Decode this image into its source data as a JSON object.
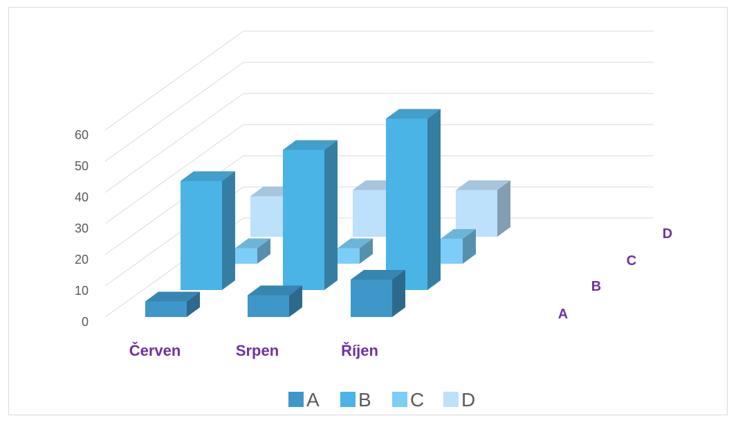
{
  "chart_data": {
    "type": "bar",
    "subtype": "3d-column",
    "categories": [
      "Červen",
      "Srpen",
      "Říjen"
    ],
    "series": [
      {
        "name": "A",
        "values": [
          5,
          7,
          12
        ],
        "color": "#3f97c9"
      },
      {
        "name": "B",
        "values": [
          35,
          45,
          55
        ],
        "color": "#4bb4e6"
      },
      {
        "name": "C",
        "values": [
          5,
          5,
          8
        ],
        "color": "#7ccdf7"
      },
      {
        "name": "D",
        "values": [
          13,
          15,
          15
        ],
        "color": "#bde0fb"
      }
    ],
    "depth_labels": [
      "A",
      "B",
      "C",
      "D"
    ],
    "y_ticks": [
      "0",
      "10",
      "20",
      "30",
      "40",
      "50",
      "60"
    ],
    "ylim": [
      0,
      60
    ],
    "grid": true,
    "legend_position": "bottom"
  }
}
